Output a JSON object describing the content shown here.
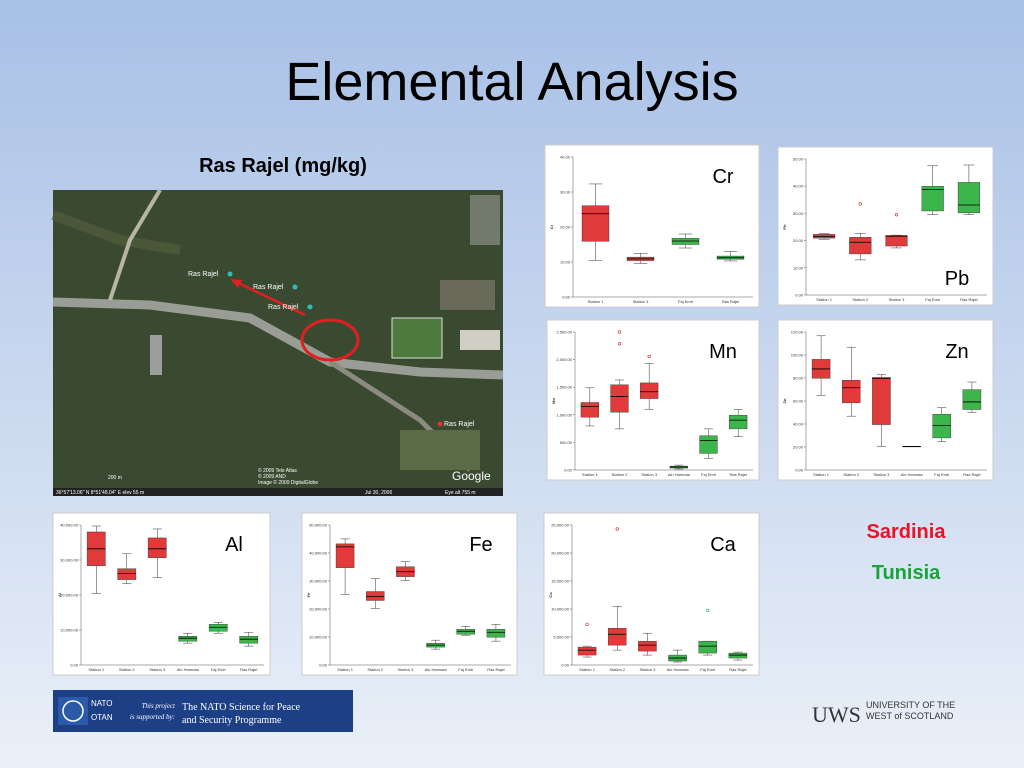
{
  "title": "Elemental Analysis",
  "subtitle": "Ras Rajel (mg/kg)",
  "legend": [
    {
      "label": "Sardinia",
      "color": "#e8132a"
    },
    {
      "label": "Tunisia",
      "color": "#1aa33a"
    }
  ],
  "map": {
    "place_labels": [
      "Ras Rajel",
      "Ras Rajel",
      "Ras Rajel",
      "Ras Rajel"
    ],
    "scale": "200 m",
    "credits": [
      "© 2009 Tele Atlas",
      "© 2009 AND",
      "Image © 2009 DigitalGlobe"
    ],
    "coords": "36°57'13.06\" N   8°51'48.04\" E   elev  55 m",
    "date": "Jul 30, 2006",
    "eye": "Eye alt  755 m",
    "brand": "Google"
  },
  "footer": {
    "nato": "NATO",
    "otan": "OTAN",
    "support": [
      "This project",
      "is supported by:"
    ],
    "programme": [
      "The NATO Science for Peace",
      "and Security Programme"
    ]
  },
  "uws": {
    "mark": "UWS",
    "name": [
      "UNIVERSITY OF THE",
      "WEST of SCOTLAND"
    ]
  },
  "chart_data": [
    {
      "type": "box",
      "title": "Cr",
      "ylabel": "Cr",
      "categories": [
        "Station 1",
        "Station 3",
        "Faj Emh",
        "Ras Rajel"
      ],
      "colors": [
        "#e03a3a",
        "#e03a3a",
        "#3cb54a",
        "#3cb54a"
      ],
      "ylim": [
        0,
        40
      ],
      "yticks": [
        {
          "value": 0,
          "label": "0.00"
        },
        {
          "value": 10,
          "label": "10.00"
        },
        {
          "value": 20,
          "label": "20.00"
        },
        {
          "value": 30,
          "label": "30.00"
        },
        {
          "value": 40,
          "label": "40.00"
        }
      ],
      "boxes": [
        {
          "min": 10.5,
          "q1": 15.9,
          "median": 23.8,
          "q3": 26.1,
          "max": 32.3
        },
        {
          "min": 9.6,
          "q1": 10.4,
          "median": 10.9,
          "q3": 11.4,
          "max": 12.5
        },
        {
          "min": 14,
          "q1": 15,
          "median": 16,
          "q3": 16.8,
          "max": 18
        },
        {
          "min": 10.3,
          "q1": 10.8,
          "median": 11.2,
          "q3": 11.7,
          "max": 13
        }
      ]
    },
    {
      "type": "box",
      "title": "Pb",
      "ylabel": "Pb",
      "categories": [
        "Station 1",
        "Station 2",
        "Station 3",
        "Faj Emh",
        "Ras Rajel"
      ],
      "colors": [
        "#e03a3a",
        "#e03a3a",
        "#e03a3a",
        "#3cb54a",
        "#3cb54a"
      ],
      "ylim": [
        0,
        50
      ],
      "yticks": [
        {
          "value": 0,
          "label": "0.00"
        },
        {
          "value": 10,
          "label": "10.00"
        },
        {
          "value": 20,
          "label": "20.00"
        },
        {
          "value": 30,
          "label": "30.00"
        },
        {
          "value": 40,
          "label": "40.00"
        },
        {
          "value": 50,
          "label": "50.00"
        }
      ],
      "boxes": [
        {
          "min": 20.5,
          "q1": 20.9,
          "median": 21.5,
          "q3": 22.3,
          "max": 22.6
        },
        {
          "min": 12.9,
          "q1": 15.1,
          "median": 19.4,
          "q3": 21.2,
          "max": 22.7,
          "outliers": [
            33.5
          ]
        },
        {
          "min": 17.3,
          "q1": 18,
          "median": 21.6,
          "q3": 21.9,
          "max": 22,
          "outliers": [
            29.5
          ]
        },
        {
          "min": 29.5,
          "q1": 30.9,
          "median": 38.8,
          "q3": 40,
          "max": 47.5
        },
        {
          "min": 29.5,
          "q1": 30.2,
          "median": 33.1,
          "q3": 41.4,
          "max": 47.8
        }
      ]
    },
    {
      "type": "box",
      "title": "Mn",
      "ylabel": "Mn",
      "categories": [
        "Station 1",
        "Station 2",
        "Station 3",
        "Ain Hamraia",
        "Faj Emh",
        "Ras Rajel"
      ],
      "colors": [
        "#e03a3a",
        "#e03a3a",
        "#e03a3a",
        "#3cb54a",
        "#3cb54a",
        "#3cb54a"
      ],
      "ylim": [
        0,
        2500
      ],
      "yticks": [
        {
          "value": 0,
          "label": "0.00"
        },
        {
          "value": 500,
          "label": "500.00"
        },
        {
          "value": 1000,
          "label": "1,000.00"
        },
        {
          "value": 1500,
          "label": "1,500.00"
        },
        {
          "value": 2000,
          "label": "2,000.00"
        },
        {
          "value": 2500,
          "label": "2,500.00"
        }
      ],
      "boxes": [
        {
          "min": 798,
          "q1": 957,
          "median": 1152,
          "q3": 1223,
          "max": 1489
        },
        {
          "min": 745,
          "q1": 1046,
          "median": 1330,
          "q3": 1543,
          "max": 1631,
          "outliers": [
            2500,
            2287
          ]
        },
        {
          "min": 1099,
          "q1": 1294,
          "median": 1418,
          "q3": 1578,
          "max": 1933,
          "outliers": [
            2057
          ]
        },
        {
          "min": 18,
          "q1": 35,
          "median": 53,
          "q3": 71,
          "max": 89
        },
        {
          "min": 213,
          "q1": 301,
          "median": 532,
          "q3": 621,
          "max": 745
        },
        {
          "min": 603,
          "q1": 745,
          "median": 904,
          "q3": 993,
          "max": 1099
        }
      ]
    },
    {
      "type": "box",
      "title": "Zn",
      "ylabel": "Zn",
      "categories": [
        "Station 1",
        "Station 2",
        "Station 3",
        "Ain Hamraia",
        "Faj Emh",
        "Ras Rajel"
      ],
      "colors": [
        "#e03a3a",
        "#e03a3a",
        "#e03a3a",
        "#3cb54a",
        "#3cb54a",
        "#3cb54a"
      ],
      "ylim": [
        0,
        120
      ],
      "yticks": [
        {
          "value": 0,
          "label": "0.00"
        },
        {
          "value": 20,
          "label": "20.00"
        },
        {
          "value": 40,
          "label": "40.00"
        },
        {
          "value": 60,
          "label": "60.00"
        },
        {
          "value": 80,
          "label": "80.00"
        },
        {
          "value": 100,
          "label": "100.00"
        },
        {
          "value": 120,
          "label": "120.00"
        }
      ],
      "boxes": [
        {
          "min": 64.9,
          "q1": 79.7,
          "median": 87.9,
          "q3": 96.2,
          "max": 116.7
        },
        {
          "min": 46.8,
          "q1": 58.4,
          "median": 71.5,
          "q3": 78.1,
          "max": 106.8
        },
        {
          "min": 20.5,
          "q1": 39.5,
          "median": 79.7,
          "q3": 80.5,
          "max": 83
        },
        {
          "min": 20.5,
          "q1": 20.5,
          "median": 20.5,
          "q3": 20.5,
          "max": 20.5
        },
        {
          "min": 24.7,
          "q1": 27.9,
          "median": 38.6,
          "q3": 48.5,
          "max": 54.2
        },
        {
          "min": 50.1,
          "q1": 52.6,
          "median": 59.2,
          "q3": 69.9,
          "max": 76.5
        }
      ]
    },
    {
      "type": "box",
      "title": "Al",
      "ylabel": "Al",
      "categories": [
        "Station 1",
        "Station 2",
        "Station 3",
        "Ain Hamraia",
        "Faj Emh",
        "Ras Rajel"
      ],
      "colors": [
        "#e03a3a",
        "#e03a3a",
        "#e03a3a",
        "#3cb54a",
        "#3cb54a",
        "#3cb54a"
      ],
      "ylim": [
        0,
        40000
      ],
      "yticks": [
        {
          "value": 0,
          "label": "0.00"
        },
        {
          "value": 10000,
          "label": "10,000.00"
        },
        {
          "value": 20000,
          "label": "20,000.00"
        },
        {
          "value": 30000,
          "label": "30,000.00"
        },
        {
          "value": 40000,
          "label": "40,000.00"
        }
      ],
      "boxes": [
        {
          "min": 20426,
          "q1": 28369,
          "median": 33191,
          "q3": 38014,
          "max": 39716
        },
        {
          "min": 23262,
          "q1": 24397,
          "median": 26099,
          "q3": 27518,
          "max": 31773
        },
        {
          "min": 24965,
          "q1": 30638,
          "median": 33191,
          "q3": 36312,
          "max": 38865
        },
        {
          "min": 6241,
          "q1": 6809,
          "median": 7660,
          "q3": 8227,
          "max": 9078
        },
        {
          "min": 9078,
          "q1": 9645,
          "median": 10780,
          "q3": 11631,
          "max": 12199
        },
        {
          "min": 5390,
          "q1": 6241,
          "median": 7376,
          "q3": 8227,
          "max": 9362
        }
      ]
    },
    {
      "type": "box",
      "title": "Fe",
      "ylabel": "Fe",
      "categories": [
        "Station 1",
        "Station 2",
        "Station 3",
        "Ain Hamraia",
        "Faj Emh",
        "Ras Rajel"
      ],
      "colors": [
        "#e03a3a",
        "#e03a3a",
        "#e03a3a",
        "#3cb54a",
        "#3cb54a",
        "#3cb54a"
      ],
      "ylim": [
        0,
        50000
      ],
      "yticks": [
        {
          "value": 0,
          "label": "0.00"
        },
        {
          "value": 10000,
          "label": "10,000.00"
        },
        {
          "value": 20000,
          "label": "20,000.00"
        },
        {
          "value": 30000,
          "label": "30,000.00"
        },
        {
          "value": 40000,
          "label": "40,000.00"
        },
        {
          "value": 50000,
          "label": "50,000.00"
        }
      ],
      "boxes": [
        {
          "min": 25177,
          "q1": 34752,
          "median": 42199,
          "q3": 43262,
          "max": 45035
        },
        {
          "min": 20213,
          "q1": 23050,
          "median": 24468,
          "q3": 26241,
          "max": 30851
        },
        {
          "min": 30142,
          "q1": 31560,
          "median": 33333,
          "q3": 35106,
          "max": 36879
        },
        {
          "min": 5674,
          "q1": 6383,
          "median": 7092,
          "q3": 7801,
          "max": 8865
        },
        {
          "min": 10638,
          "q1": 10993,
          "median": 12057,
          "q3": 12766,
          "max": 13830
        },
        {
          "min": 8511,
          "q1": 9929,
          "median": 11702,
          "q3": 12766,
          "max": 14539
        }
      ]
    },
    {
      "type": "box",
      "title": "Ca",
      "ylabel": "Ca",
      "categories": [
        "Station 1",
        "Station 2",
        "Station 3",
        "Ain Hamraia",
        "Faj Emh",
        "Ras Rajel"
      ],
      "colors": [
        "#e03a3a",
        "#e03a3a",
        "#e03a3a",
        "#3cb54a",
        "#3cb54a",
        "#3cb54a"
      ],
      "ylim": [
        0,
        25000
      ],
      "yticks": [
        {
          "value": 0,
          "label": "0.00"
        },
        {
          "value": 5000,
          "label": "5,000.00"
        },
        {
          "value": 10000,
          "label": "10,000.00"
        },
        {
          "value": 15000,
          "label": "15,000.00"
        },
        {
          "value": 20000,
          "label": "20,000.00"
        },
        {
          "value": 25000,
          "label": "25,000.00"
        }
      ],
      "boxes": [
        {
          "min": 1418,
          "q1": 1773,
          "median": 2660,
          "q3": 3191,
          "max": 3369,
          "outliers": [
            7270
          ]
        },
        {
          "min": 2660,
          "q1": 3546,
          "median": 5496,
          "q3": 6560,
          "max": 10461,
          "outliers": [
            24291
          ]
        },
        {
          "min": 1773,
          "q1": 2482,
          "median": 3546,
          "q3": 4255,
          "max": 5674
        },
        {
          "min": 532,
          "q1": 709,
          "median": 1241,
          "q3": 1773,
          "max": 2660
        },
        {
          "min": 1773,
          "q1": 2128,
          "median": 3369,
          "q3": 4255,
          "max": 4255,
          "outliers": [
            9752
          ]
        },
        {
          "min": 887,
          "q1": 1241,
          "median": 1773,
          "q3": 2128,
          "max": 2305
        }
      ]
    }
  ]
}
